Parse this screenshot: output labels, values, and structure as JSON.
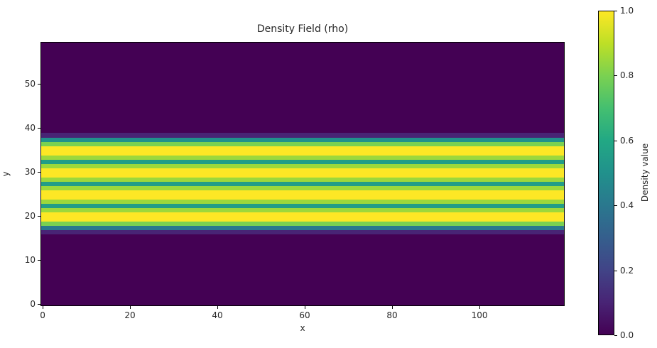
{
  "chart_data": {
    "type": "heatmap",
    "title": "Density Field (rho)",
    "xlabel": "x",
    "ylabel": "y",
    "xlim": [
      -0.5,
      119.5
    ],
    "ylim": [
      -0.5,
      59.5
    ],
    "xticks": [
      0,
      20,
      40,
      60,
      80,
      100
    ],
    "yticks": [
      0,
      10,
      20,
      30,
      40,
      50
    ],
    "grid": false,
    "colormap": "viridis",
    "colorbar": {
      "label": "Density value",
      "range": [
        0.0,
        1.0
      ],
      "ticks": [
        "0.0",
        "0.2",
        "0.4",
        "0.6",
        "0.8",
        "1.0"
      ]
    },
    "description": "Field is constant along x; density varies only with y. Zero below y=16 and above y=38, with a horizontal band of periodic stripes between.",
    "row_profile": [
      {
        "y": 16,
        "value": 0.1
      },
      {
        "y": 17,
        "value": 0.4
      },
      {
        "y": 18,
        "value": 0.8
      },
      {
        "y": 19,
        "value": 1.0
      },
      {
        "y": 20,
        "value": 1.0
      },
      {
        "y": 21,
        "value": 0.85
      },
      {
        "y": 22,
        "value": 0.55
      },
      {
        "y": 23,
        "value": 0.85
      },
      {
        "y": 24,
        "value": 1.0
      },
      {
        "y": 25,
        "value": 1.0
      },
      {
        "y": 26,
        "value": 0.85
      },
      {
        "y": 27,
        "value": 0.55
      },
      {
        "y": 28,
        "value": 0.85
      },
      {
        "y": 29,
        "value": 1.0
      },
      {
        "y": 30,
        "value": 1.0
      },
      {
        "y": 31,
        "value": 0.85
      },
      {
        "y": 32,
        "value": 0.55
      },
      {
        "y": 33,
        "value": 0.85
      },
      {
        "y": 34,
        "value": 1.0
      },
      {
        "y": 35,
        "value": 1.0
      },
      {
        "y": 36,
        "value": 0.8
      },
      {
        "y": 37,
        "value": 0.5
      },
      {
        "y": 38,
        "value": 0.1
      }
    ]
  },
  "labels": {
    "title": "Density Field (rho)",
    "xlabel": "x",
    "ylabel": "y",
    "cbar_label": "Density value",
    "xticks": [
      "0",
      "20",
      "40",
      "60",
      "80",
      "100"
    ],
    "yticks": [
      "0",
      "10",
      "20",
      "30",
      "40",
      "50"
    ],
    "cticks": [
      "0.0",
      "0.2",
      "0.4",
      "0.6",
      "0.8",
      "1.0"
    ]
  }
}
